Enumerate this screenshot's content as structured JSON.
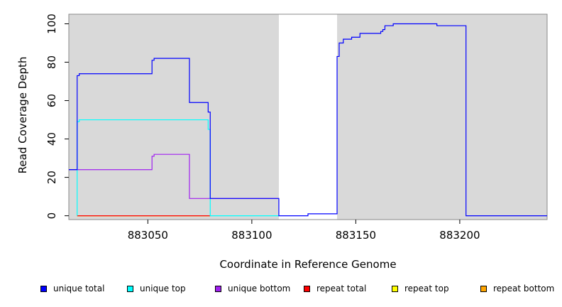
{
  "chart_data": {
    "type": "line",
    "xlabel": "Coordinate in Reference Genome",
    "ylabel": "Read Coverage Depth",
    "xlim": [
      883012,
      883242
    ],
    "ylim": [
      -2,
      105
    ],
    "x_ticks": [
      883050,
      883100,
      883150,
      883200
    ],
    "y_ticks": [
      0,
      20,
      40,
      60,
      80,
      100
    ],
    "grid": false,
    "panel_color": "#d9d9d9",
    "gaps": [
      [
        883113,
        883141
      ]
    ],
    "legend_position": "bottom",
    "series": [
      {
        "name": "unique total",
        "color": "#0000ff",
        "x": [
          883012,
          883016,
          883016,
          883017,
          883017,
          883052,
          883052,
          883053,
          883053,
          883070,
          883070,
          883079,
          883079,
          883080,
          883080,
          883113,
          883113,
          883127,
          883127,
          883141,
          883141,
          883142,
          883142,
          883144,
          883144,
          883148,
          883148,
          883152,
          883152,
          883162,
          883162,
          883163,
          883163,
          883164,
          883164,
          883168,
          883168,
          883189,
          883189,
          883203,
          883203,
          883242
        ],
        "y": [
          24,
          24,
          73,
          73,
          74,
          74,
          81,
          81,
          82,
          82,
          59,
          59,
          54,
          54,
          9,
          9,
          0,
          0,
          1,
          1,
          83,
          83,
          90,
          90,
          92,
          92,
          93,
          93,
          95,
          95,
          96,
          96,
          97,
          97,
          99,
          99,
          100,
          100,
          99,
          99,
          0,
          0
        ]
      },
      {
        "name": "unique top",
        "color": "#00ffff",
        "x": [
          883016,
          883016,
          883017,
          883017,
          883079,
          883079,
          883080,
          883080,
          883113
        ],
        "y": [
          0,
          49,
          49,
          50,
          50,
          45,
          45,
          0,
          0
        ]
      },
      {
        "name": "unique bottom",
        "color": "#a020f0",
        "x": [
          883012,
          883052,
          883052,
          883053,
          883053,
          883070,
          883070,
          883113
        ],
        "y": [
          24,
          24,
          31,
          31,
          32,
          32,
          9,
          9
        ]
      },
      {
        "name": "repeat total",
        "color": "#ff0000",
        "x": [
          883016,
          883080
        ],
        "y": [
          0,
          0
        ]
      },
      {
        "name": "repeat top",
        "color": "#ffff00",
        "x": [
          883016,
          883080
        ],
        "y": [
          0,
          0
        ]
      },
      {
        "name": "repeat bottom",
        "color": "#ffa500",
        "x": [
          883016,
          883080
        ],
        "y": [
          0,
          0
        ]
      }
    ]
  }
}
